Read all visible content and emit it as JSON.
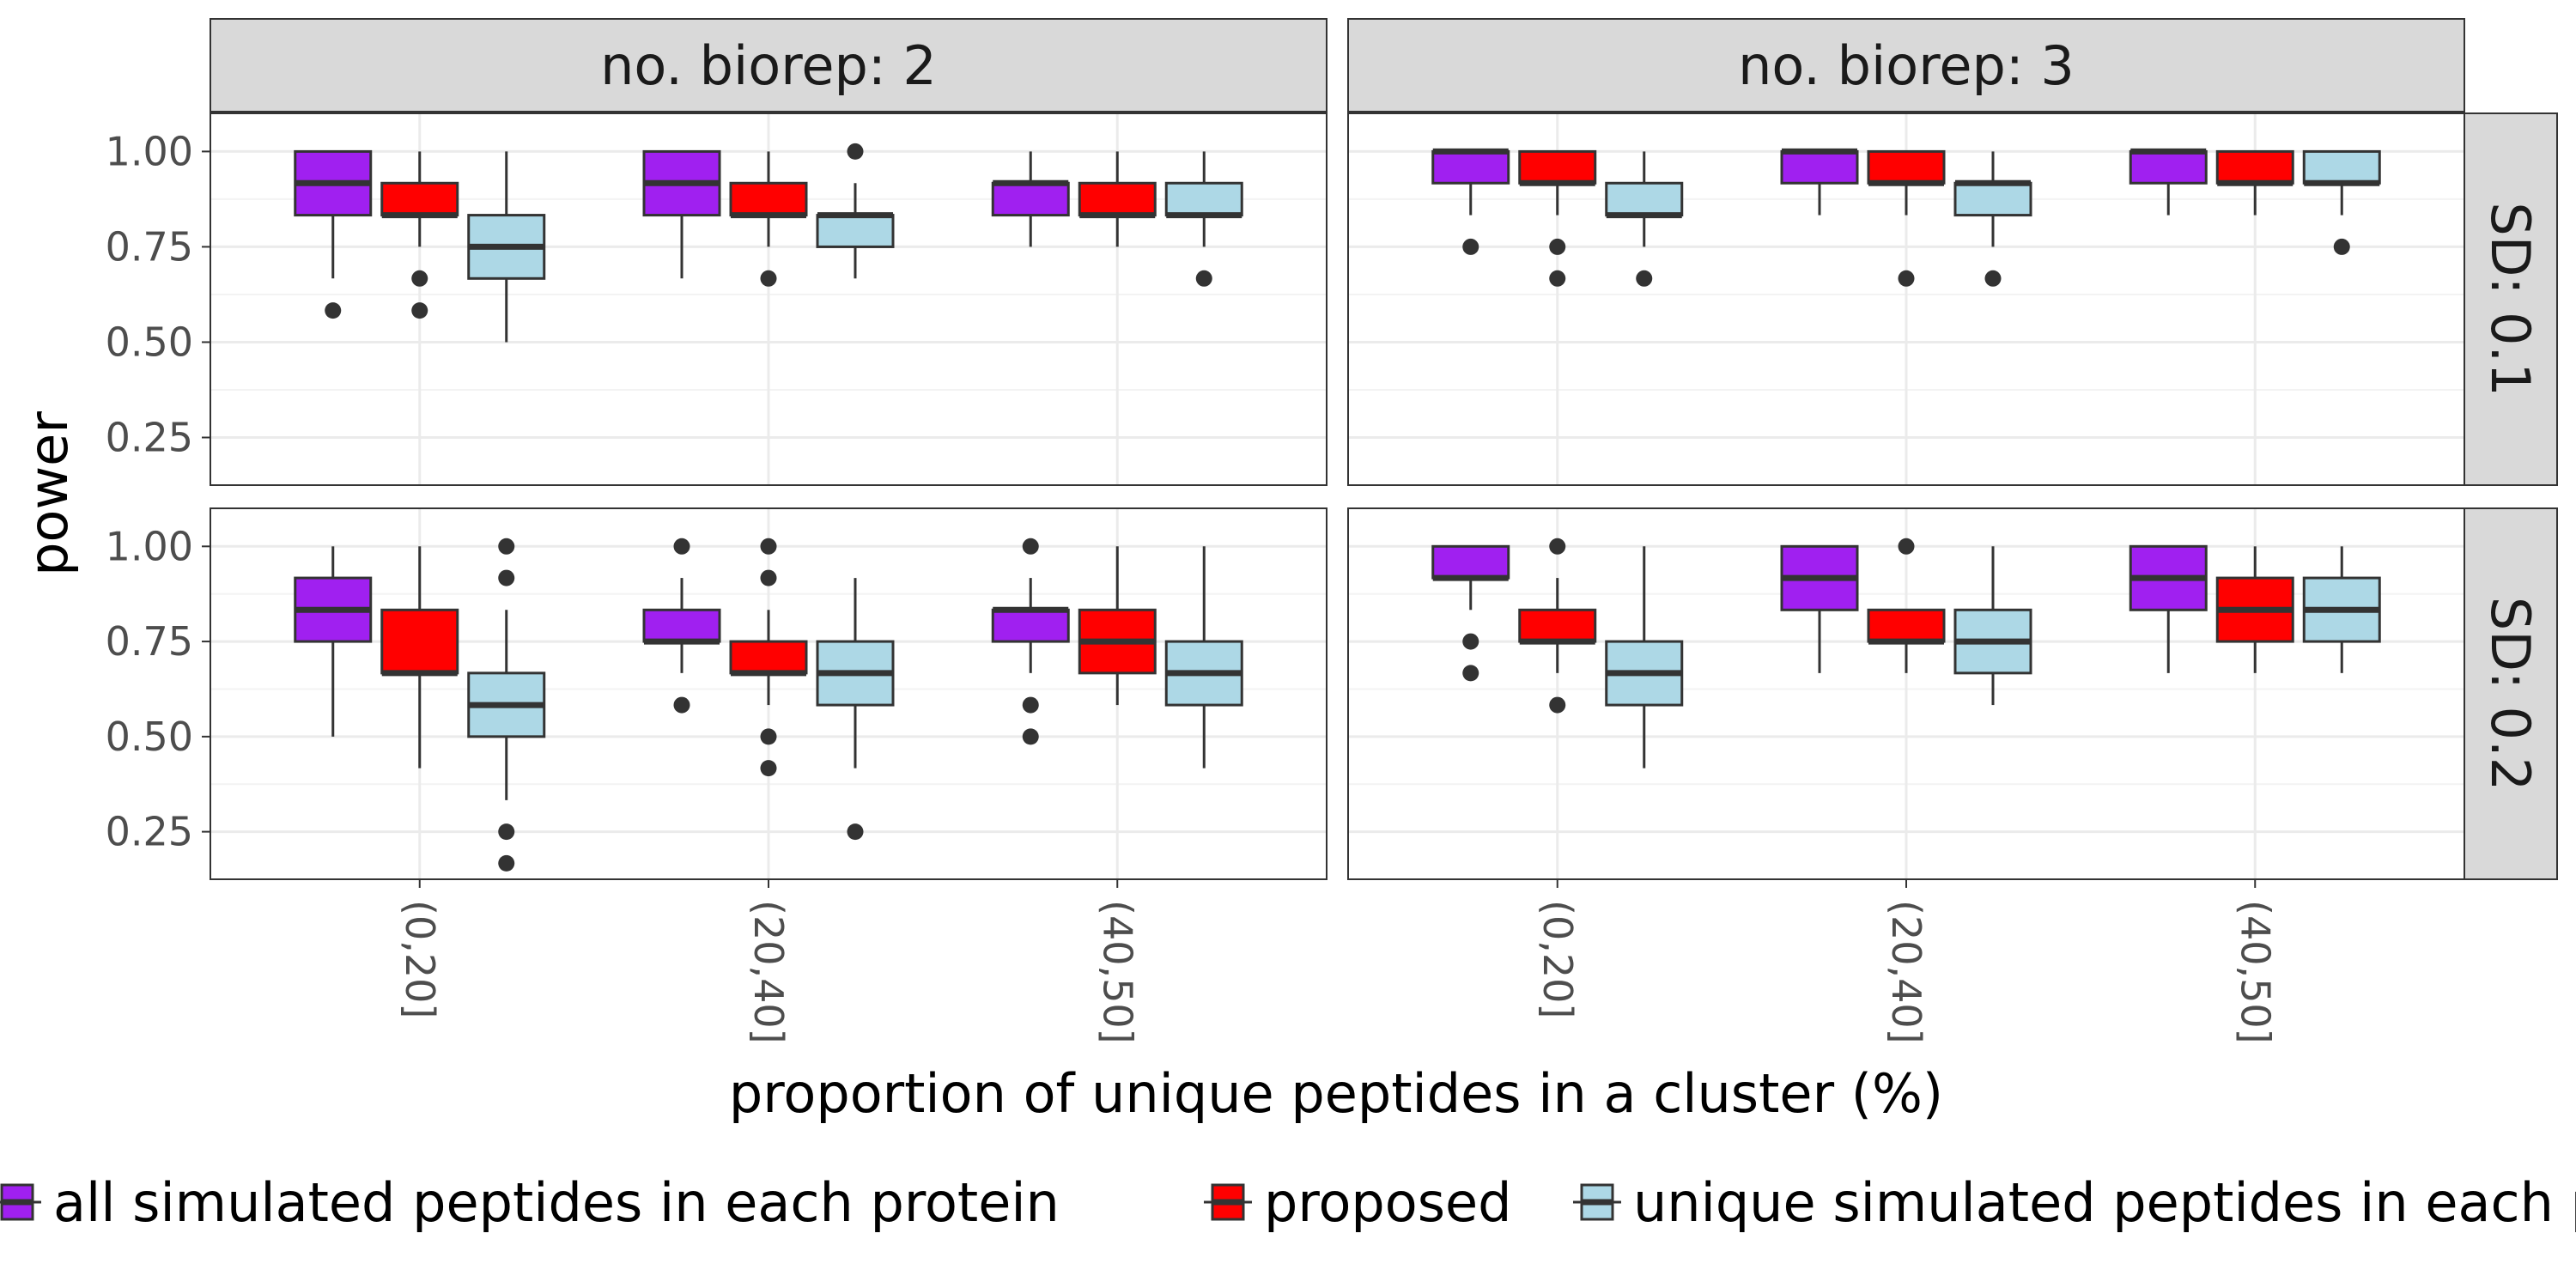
{
  "chart_data": {
    "type": "boxplot",
    "xlabel": "proportion of unique peptides in a cluster (%)",
    "ylabel": "power",
    "ylim": [
      0.125,
      1.1
    ],
    "yticks": [
      0.25,
      0.5,
      0.75,
      1.0
    ],
    "ytick_labels": [
      "0.25",
      "0.50",
      "0.75",
      "1.00"
    ],
    "categories": [
      "(0,20]",
      "(20,40]",
      "(40,50]"
    ],
    "facet_cols": [
      "no. biorep: 2",
      "no. biorep: 3"
    ],
    "facet_rows": [
      "SD: 0.1",
      "SD: 0.2"
    ],
    "grid": true,
    "legend_position": "bottom",
    "series": [
      {
        "name": "all simulated peptides in each protein",
        "color": "#a020f0"
      },
      {
        "name": "proposed",
        "color": "#ff0000"
      },
      {
        "name": "unique simulated peptides in each protein",
        "color": "#add8e6"
      }
    ],
    "panels": [
      {
        "row": 0,
        "col": 0,
        "boxes": [
          [
            {
              "min": 0.667,
              "q1": 0.833,
              "median": 0.917,
              "q3": 1.0,
              "max": 1.0,
              "outliers": [
                0.583
              ]
            },
            {
              "min": 0.75,
              "q1": 0.833,
              "median": 0.833,
              "q3": 0.917,
              "max": 1.0,
              "outliers": [
                0.667,
                0.583
              ]
            },
            {
              "min": 0.5,
              "q1": 0.667,
              "median": 0.75,
              "q3": 0.833,
              "max": 1.0,
              "outliers": []
            }
          ],
          [
            {
              "min": 0.667,
              "q1": 0.833,
              "median": 0.917,
              "q3": 1.0,
              "max": 1.0,
              "outliers": []
            },
            {
              "min": 0.75,
              "q1": 0.833,
              "median": 0.833,
              "q3": 0.917,
              "max": 1.0,
              "outliers": [
                0.667
              ]
            },
            {
              "min": 0.667,
              "q1": 0.75,
              "median": 0.833,
              "q3": 0.833,
              "max": 0.917,
              "outliers": [
                1.0
              ]
            }
          ],
          [
            {
              "min": 0.75,
              "q1": 0.833,
              "median": 0.917,
              "q3": 0.917,
              "max": 1.0,
              "outliers": []
            },
            {
              "min": 0.75,
              "q1": 0.833,
              "median": 0.833,
              "q3": 0.917,
              "max": 1.0,
              "outliers": []
            },
            {
              "min": 0.75,
              "q1": 0.833,
              "median": 0.833,
              "q3": 0.917,
              "max": 1.0,
              "outliers": [
                0.667
              ]
            }
          ]
        ]
      },
      {
        "row": 0,
        "col": 1,
        "boxes": [
          [
            {
              "min": 0.833,
              "q1": 0.917,
              "median": 1.0,
              "q3": 1.0,
              "max": 1.0,
              "outliers": [
                0.75
              ]
            },
            {
              "min": 0.833,
              "q1": 0.917,
              "median": 0.917,
              "q3": 1.0,
              "max": 1.0,
              "outliers": [
                0.75,
                0.667
              ]
            },
            {
              "min": 0.75,
              "q1": 0.833,
              "median": 0.833,
              "q3": 0.917,
              "max": 1.0,
              "outliers": [
                0.667
              ]
            }
          ],
          [
            {
              "min": 0.833,
              "q1": 0.917,
              "median": 1.0,
              "q3": 1.0,
              "max": 1.0,
              "outliers": []
            },
            {
              "min": 0.833,
              "q1": 0.917,
              "median": 0.917,
              "q3": 1.0,
              "max": 1.0,
              "outliers": [
                0.667
              ]
            },
            {
              "min": 0.75,
              "q1": 0.833,
              "median": 0.917,
              "q3": 0.917,
              "max": 1.0,
              "outliers": [
                0.667
              ]
            }
          ],
          [
            {
              "min": 0.833,
              "q1": 0.917,
              "median": 1.0,
              "q3": 1.0,
              "max": 1.0,
              "outliers": []
            },
            {
              "min": 0.833,
              "q1": 0.917,
              "median": 0.917,
              "q3": 1.0,
              "max": 1.0,
              "outliers": []
            },
            {
              "min": 0.833,
              "q1": 0.917,
              "median": 0.917,
              "q3": 1.0,
              "max": 1.0,
              "outliers": [
                0.75
              ]
            }
          ]
        ]
      },
      {
        "row": 1,
        "col": 0,
        "boxes": [
          [
            {
              "min": 0.5,
              "q1": 0.75,
              "median": 0.833,
              "q3": 0.917,
              "max": 1.0,
              "outliers": []
            },
            {
              "min": 0.417,
              "q1": 0.667,
              "median": 0.667,
              "q3": 0.833,
              "max": 1.0,
              "outliers": []
            },
            {
              "min": 0.333,
              "q1": 0.5,
              "median": 0.583,
              "q3": 0.667,
              "max": 0.833,
              "outliers": [
                1.0,
                0.917,
                0.25,
                0.167
              ]
            }
          ],
          [
            {
              "min": 0.667,
              "q1": 0.75,
              "median": 0.75,
              "q3": 0.833,
              "max": 0.917,
              "outliers": [
                1.0,
                0.583
              ]
            },
            {
              "min": 0.583,
              "q1": 0.667,
              "median": 0.667,
              "q3": 0.75,
              "max": 0.833,
              "outliers": [
                1.0,
                0.917,
                0.5,
                0.417
              ]
            },
            {
              "min": 0.417,
              "q1": 0.583,
              "median": 0.667,
              "q3": 0.75,
              "max": 0.917,
              "outliers": [
                0.25
              ]
            }
          ],
          [
            {
              "min": 0.667,
              "q1": 0.75,
              "median": 0.833,
              "q3": 0.833,
              "max": 0.917,
              "outliers": [
                1.0,
                0.583,
                0.5
              ]
            },
            {
              "min": 0.583,
              "q1": 0.667,
              "median": 0.75,
              "q3": 0.833,
              "max": 1.0,
              "outliers": []
            },
            {
              "min": 0.417,
              "q1": 0.583,
              "median": 0.667,
              "q3": 0.75,
              "max": 1.0,
              "outliers": []
            }
          ]
        ]
      },
      {
        "row": 1,
        "col": 1,
        "boxes": [
          [
            {
              "min": 0.833,
              "q1": 0.917,
              "median": 0.917,
              "q3": 1.0,
              "max": 1.0,
              "outliers": [
                0.75,
                0.667
              ]
            },
            {
              "min": 0.667,
              "q1": 0.75,
              "median": 0.75,
              "q3": 0.833,
              "max": 0.917,
              "outliers": [
                1.0,
                0.583
              ]
            },
            {
              "min": 0.417,
              "q1": 0.583,
              "median": 0.667,
              "q3": 0.75,
              "max": 1.0,
              "outliers": []
            }
          ],
          [
            {
              "min": 0.667,
              "q1": 0.833,
              "median": 0.917,
              "q3": 1.0,
              "max": 1.0,
              "outliers": []
            },
            {
              "min": 0.667,
              "q1": 0.75,
              "median": 0.75,
              "q3": 0.833,
              "max": 0.833,
              "outliers": [
                1.0
              ]
            },
            {
              "min": 0.583,
              "q1": 0.667,
              "median": 0.75,
              "q3": 0.833,
              "max": 1.0,
              "outliers": []
            }
          ],
          [
            {
              "min": 0.667,
              "q1": 0.833,
              "median": 0.917,
              "q3": 1.0,
              "max": 1.0,
              "outliers": []
            },
            {
              "min": 0.667,
              "q1": 0.75,
              "median": 0.833,
              "q3": 0.917,
              "max": 1.0,
              "outliers": []
            },
            {
              "min": 0.667,
              "q1": 0.75,
              "median": 0.833,
              "q3": 0.917,
              "max": 1.0,
              "outliers": []
            }
          ]
        ]
      }
    ]
  }
}
